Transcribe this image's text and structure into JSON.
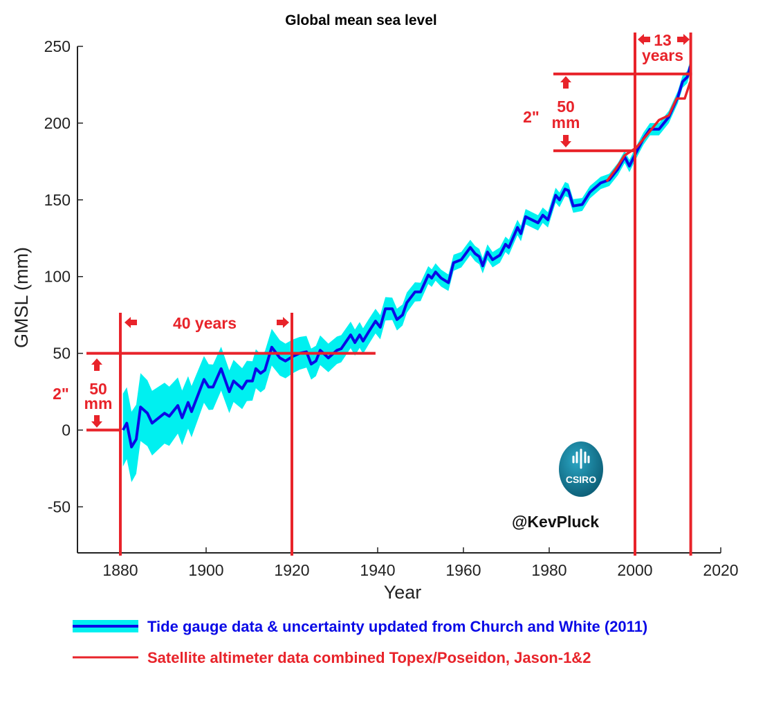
{
  "chart_data": {
    "type": "line",
    "title": "Global mean sea level",
    "xlabel": "Year",
    "ylabel": "GMSL (mm)",
    "xlim": [
      1870,
      2020
    ],
    "ylim": [
      -80,
      250
    ],
    "xticks": [
      1880,
      1900,
      1920,
      1940,
      1960,
      1980,
      2000,
      2020
    ],
    "yticks": [
      -50,
      0,
      50,
      100,
      150,
      200,
      250
    ],
    "grid": false,
    "legend_position": "bottom",
    "series": [
      {
        "name": "Tide gauge data & uncertainty updated from Church and White (2011)",
        "color": "#0a0ae6",
        "band_color": "#00f0f0",
        "points": [
          [
            1880.6,
            0
          ],
          [
            1881.5,
            4.5
          ],
          [
            1882.6,
            -11
          ],
          [
            1883.7,
            -6
          ],
          [
            1884.7,
            15
          ],
          [
            1886.3,
            11
          ],
          [
            1887.4,
            4.5
          ],
          [
            1890.3,
            11
          ],
          [
            1891.4,
            9
          ],
          [
            1893.4,
            16
          ],
          [
            1894.4,
            8
          ],
          [
            1895.8,
            18
          ],
          [
            1896.6,
            12
          ],
          [
            1899.5,
            33
          ],
          [
            1900.6,
            28
          ],
          [
            1901.6,
            28
          ],
          [
            1903.5,
            40
          ],
          [
            1905.4,
            25
          ],
          [
            1906.4,
            32
          ],
          [
            1908.4,
            27
          ],
          [
            1909.5,
            32
          ],
          [
            1910.8,
            32
          ],
          [
            1911.6,
            40
          ],
          [
            1912.7,
            37
          ],
          [
            1913.7,
            39
          ],
          [
            1915.3,
            54
          ],
          [
            1917.2,
            47
          ],
          [
            1918.5,
            45
          ],
          [
            1920.2,
            48
          ],
          [
            1921.8,
            50
          ],
          [
            1923.4,
            51
          ],
          [
            1924.5,
            43
          ],
          [
            1925.6,
            45
          ],
          [
            1926.6,
            52
          ],
          [
            1928.5,
            47
          ],
          [
            1930.5,
            52
          ],
          [
            1931.5,
            53
          ],
          [
            1933.7,
            62
          ],
          [
            1934.7,
            57
          ],
          [
            1935.8,
            62
          ],
          [
            1936.6,
            58
          ],
          [
            1937.9,
            64
          ],
          [
            1939.5,
            71
          ],
          [
            1940.6,
            67
          ],
          [
            1941.8,
            79
          ],
          [
            1943.4,
            79
          ],
          [
            1944.5,
            72
          ],
          [
            1945.8,
            75
          ],
          [
            1946.8,
            83
          ],
          [
            1948.7,
            90
          ],
          [
            1950,
            90
          ],
          [
            1951.8,
            101
          ],
          [
            1952.6,
            99
          ],
          [
            1953.5,
            103
          ],
          [
            1954.8,
            99
          ],
          [
            1956.5,
            96
          ],
          [
            1957.7,
            109
          ],
          [
            1959.5,
            111
          ],
          [
            1961.6,
            119
          ],
          [
            1962.7,
            115
          ],
          [
            1963.7,
            113
          ],
          [
            1964.5,
            107
          ],
          [
            1965.6,
            116
          ],
          [
            1966.8,
            111
          ],
          [
            1968.5,
            114
          ],
          [
            1969.8,
            121
          ],
          [
            1970.6,
            119
          ],
          [
            1972.6,
            132
          ],
          [
            1973.4,
            128
          ],
          [
            1974.5,
            139
          ],
          [
            1977.4,
            135
          ],
          [
            1978.5,
            140
          ],
          [
            1979.7,
            137
          ],
          [
            1981.5,
            153
          ],
          [
            1982.4,
            150
          ],
          [
            1983.7,
            157
          ],
          [
            1984.5,
            156
          ],
          [
            1985.6,
            146
          ],
          [
            1987.7,
            147
          ],
          [
            1989.5,
            155
          ],
          [
            1992,
            161
          ],
          [
            1994,
            163
          ],
          [
            1996,
            170
          ],
          [
            1997.6,
            178
          ],
          [
            1998.7,
            172
          ],
          [
            2000.3,
            181
          ],
          [
            2002,
            190
          ],
          [
            2003.5,
            196
          ],
          [
            2005.6,
            196
          ],
          [
            2007.9,
            204
          ],
          [
            2010,
            217
          ],
          [
            2011.1,
            227
          ],
          [
            2012.2,
            230
          ],
          [
            2012.9,
            237
          ]
        ],
        "uncertainty_halfwidth": [
          [
            1880,
            24
          ],
          [
            1885,
            22
          ],
          [
            1890,
            20
          ],
          [
            1900,
            15
          ],
          [
            1910,
            13
          ],
          [
            1920,
            11
          ],
          [
            1930,
            9
          ],
          [
            1940,
            8
          ],
          [
            1950,
            6
          ],
          [
            1960,
            5
          ],
          [
            1970,
            5
          ],
          [
            1980,
            5
          ],
          [
            1990,
            4
          ],
          [
            2000,
            4
          ],
          [
            2013,
            4
          ]
        ]
      },
      {
        "name": "Satellite altimeter data combined Topex/Poseidon, Jason-1&2",
        "color": "#e8232a",
        "points": [
          [
            1993.4,
            162
          ],
          [
            1995.5,
            170
          ],
          [
            1997.6,
            179
          ],
          [
            2000.3,
            184
          ],
          [
            2003,
            193
          ],
          [
            2005.6,
            202
          ],
          [
            2007.9,
            205
          ],
          [
            2009.7,
            216
          ],
          [
            2011.6,
            216
          ],
          [
            2012.9,
            227
          ]
        ]
      }
    ],
    "annotations": {
      "color": "#e8232a",
      "span_1": {
        "years": [
          1880,
          1920
        ],
        "mm": [
          0,
          50
        ],
        "label_years": "40 years",
        "label_mm_1": "50",
        "label_mm_2": "mm",
        "label_inch": "2\""
      },
      "span_2": {
        "years": [
          2000,
          2013
        ],
        "mm": [
          182,
          232
        ],
        "label_years_1": "13",
        "label_years_2": "years",
        "label_mm_1": "50",
        "label_mm_2": "mm",
        "label_inch": "2\""
      }
    }
  },
  "logo": {
    "text": "CSIRO",
    "color": "#1a8aa8"
  },
  "credit": "@KevPluck"
}
